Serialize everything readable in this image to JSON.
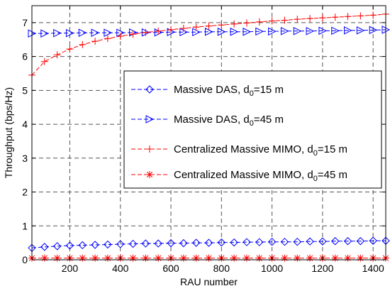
{
  "chart_data": {
    "type": "line",
    "title": "",
    "xlabel": "RAU number",
    "ylabel": "Throughput (bps/Hz)",
    "xlim": [
      50,
      1450
    ],
    "ylim": [
      0,
      7.5
    ],
    "xticks": [
      200,
      400,
      600,
      800,
      1000,
      1200,
      1400
    ],
    "xtick_labels": [
      "200",
      "400",
      "600",
      "800",
      "1000",
      "1200",
      "1400"
    ],
    "yticks": [
      0,
      1,
      2,
      3,
      4,
      5,
      6,
      7
    ],
    "ytick_labels": [
      "0",
      "1",
      "2",
      "3",
      "4",
      "5",
      "6",
      "7"
    ],
    "grid": true,
    "legend_position": "center-right",
    "x": [
      50,
      100,
      150,
      200,
      250,
      300,
      350,
      400,
      450,
      500,
      550,
      600,
      650,
      700,
      750,
      800,
      850,
      900,
      950,
      1000,
      1050,
      1100,
      1150,
      1200,
      1250,
      1300,
      1350,
      1400,
      1450
    ],
    "series": [
      {
        "name_main": "Massive DAS, d",
        "name_sub": "0",
        "name_tail": "=15 m",
        "color": "#0000ff",
        "marker": "diamond",
        "values": [
          0.35,
          0.38,
          0.4,
          0.42,
          0.43,
          0.44,
          0.45,
          0.46,
          0.47,
          0.48,
          0.48,
          0.49,
          0.49,
          0.5,
          0.5,
          0.51,
          0.51,
          0.52,
          0.52,
          0.53,
          0.53,
          0.53,
          0.54,
          0.54,
          0.55,
          0.55,
          0.55,
          0.56,
          0.56
        ]
      },
      {
        "name_main": "Massive DAS, d",
        "name_sub": "0",
        "name_tail": "=45 m",
        "color": "#0000ff",
        "marker": "triangle-right",
        "values": [
          6.68,
          6.68,
          6.69,
          6.69,
          6.7,
          6.7,
          6.7,
          6.7,
          6.71,
          6.71,
          6.71,
          6.72,
          6.72,
          6.72,
          6.73,
          6.73,
          6.73,
          6.73,
          6.74,
          6.74,
          6.75,
          6.75,
          6.75,
          6.76,
          6.76,
          6.77,
          6.77,
          6.78,
          6.79
        ]
      },
      {
        "name_main": "Centralized Massive MIMO, d",
        "name_sub": "0",
        "name_tail": "=15 m",
        "color": "#ff0000",
        "marker": "plus",
        "values": [
          5.45,
          5.85,
          6.05,
          6.22,
          6.35,
          6.45,
          6.53,
          6.6,
          6.66,
          6.71,
          6.75,
          6.79,
          6.83,
          6.87,
          6.9,
          6.93,
          6.96,
          6.99,
          7.02,
          7.05,
          7.07,
          7.1,
          7.12,
          7.14,
          7.16,
          7.18,
          7.2,
          7.22,
          7.25
        ]
      },
      {
        "name_main": "Centralized Massive MIMO, d",
        "name_sub": "0",
        "name_tail": "=45 m",
        "color": "#ff0000",
        "marker": "star",
        "values": [
          0.05,
          0.05,
          0.05,
          0.05,
          0.05,
          0.05,
          0.05,
          0.05,
          0.05,
          0.05,
          0.05,
          0.05,
          0.05,
          0.05,
          0.05,
          0.05,
          0.05,
          0.05,
          0.05,
          0.05,
          0.05,
          0.05,
          0.05,
          0.05,
          0.05,
          0.05,
          0.05,
          0.05,
          0.05
        ]
      }
    ]
  }
}
